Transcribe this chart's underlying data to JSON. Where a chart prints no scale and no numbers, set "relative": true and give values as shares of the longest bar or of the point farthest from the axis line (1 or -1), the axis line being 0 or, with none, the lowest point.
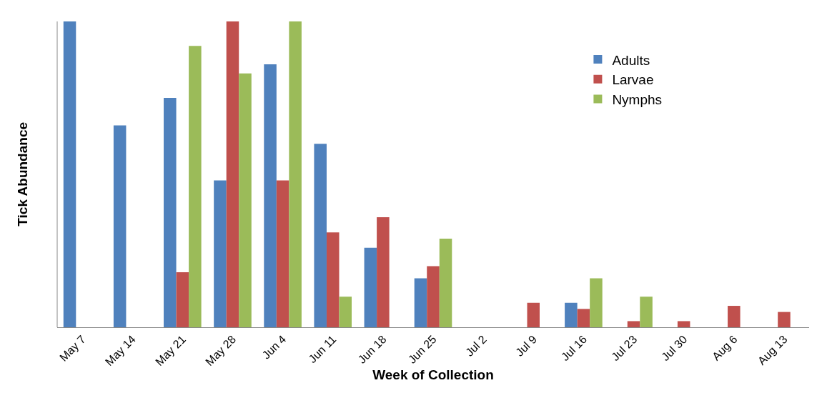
{
  "chart_data": {
    "type": "bar",
    "relative": true,
    "xlabel": "Week of Collection",
    "ylabel": "Tick Abundance",
    "categories": [
      "May 7",
      "May 14",
      "May 21",
      "May 28",
      "Jun 4",
      "Jun 11",
      "Jun 18",
      "Jun 25",
      "Jul 2",
      "Jul 9",
      "Jul 16",
      "Jul 23",
      "Jul 30",
      "Aug 6",
      "Aug 13"
    ],
    "series": [
      {
        "name": "Adults",
        "color": "#4f81bd",
        "values": [
          1.0,
          0.66,
          0.75,
          0.48,
          0.86,
          0.6,
          0.26,
          0.16,
          0,
          0,
          0.08,
          0,
          0,
          0,
          0
        ]
      },
      {
        "name": "Larvae",
        "color": "#c0504d",
        "values": [
          0,
          0,
          0.18,
          1.0,
          0.48,
          0.31,
          0.36,
          0.2,
          0,
          0.08,
          0.06,
          0.02,
          0.02,
          0.07,
          0.05
        ]
      },
      {
        "name": "Nymphs",
        "color": "#9bbb59",
        "values": [
          0,
          0,
          0.92,
          0.83,
          1.0,
          0.1,
          0,
          0.29,
          0,
          0,
          0.16,
          0.1,
          0,
          0,
          0
        ]
      }
    ],
    "legend": "top right",
    "grid": false
  }
}
